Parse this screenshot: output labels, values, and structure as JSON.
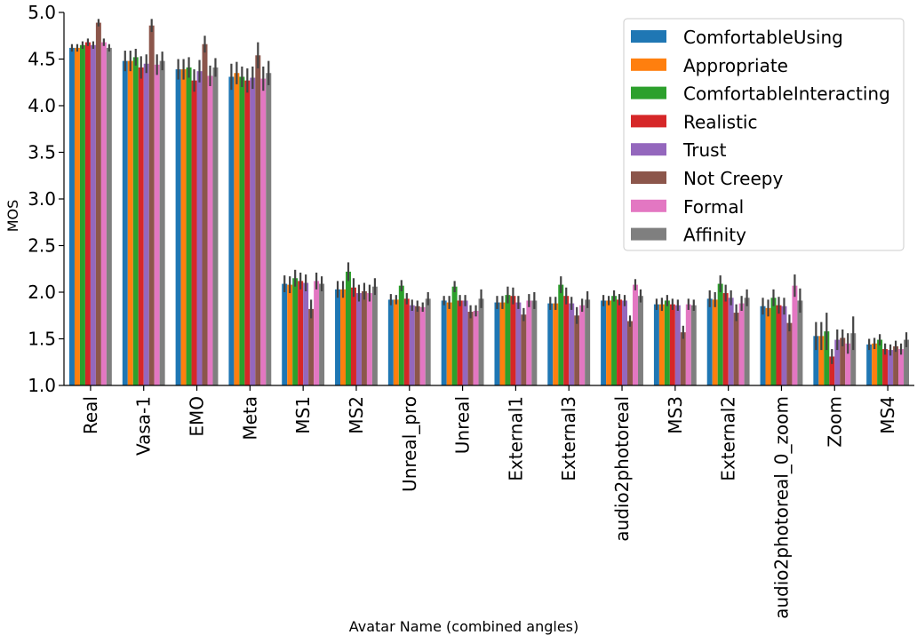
{
  "chart_data": {
    "type": "bar",
    "title": "",
    "xlabel": "Avatar Name (combined angles)",
    "ylabel": "MOS",
    "ylim": [
      1.0,
      5.0
    ],
    "yticks": [
      "1.0",
      "1.5",
      "2.0",
      "2.5",
      "3.0",
      "3.5",
      "4.0",
      "4.5",
      "5.0"
    ],
    "grid": false,
    "legend_position": "top-right",
    "categories": [
      "Real",
      "Vasa-1",
      "EMO",
      "Meta",
      "MS1",
      "MS2",
      "Unreal_pro",
      "Unreal",
      "External1",
      "External3",
      "audio2photoreal",
      "MS3",
      "External2",
      "audio2photoreal_0_zoom",
      "Zoom",
      "MS4"
    ],
    "series": [
      {
        "name": "ComfortableUsing",
        "color": "#1f77b4",
        "values": [
          4.62,
          4.48,
          4.39,
          4.31,
          2.09,
          2.03,
          1.92,
          1.91,
          1.89,
          1.88,
          1.91,
          1.87,
          1.93,
          1.85,
          1.53,
          1.44
        ],
        "errors": [
          0.04,
          0.11,
          0.11,
          0.14,
          0.09,
          0.09,
          0.06,
          0.05,
          0.07,
          0.07,
          0.06,
          0.06,
          0.09,
          0.09,
          0.15,
          0.06
        ]
      },
      {
        "name": "Appropriate",
        "color": "#ff7f0e",
        "values": [
          4.62,
          4.48,
          4.39,
          4.35,
          2.08,
          2.03,
          1.92,
          1.89,
          1.89,
          1.88,
          1.91,
          1.87,
          1.92,
          1.83,
          1.53,
          1.45
        ],
        "errors": [
          0.04,
          0.11,
          0.11,
          0.12,
          0.09,
          0.09,
          0.05,
          0.07,
          0.07,
          0.07,
          0.05,
          0.07,
          0.08,
          0.09,
          0.15,
          0.06
        ]
      },
      {
        "name": "ComfortableInteracting",
        "color": "#2ca02c",
        "values": [
          4.65,
          4.52,
          4.41,
          4.31,
          2.15,
          2.22,
          2.07,
          2.06,
          1.97,
          2.08,
          1.96,
          1.91,
          2.09,
          1.94,
          1.58,
          1.49
        ],
        "errors": [
          0.04,
          0.09,
          0.11,
          0.11,
          0.09,
          0.1,
          0.06,
          0.06,
          0.09,
          0.09,
          0.06,
          0.06,
          0.09,
          0.09,
          0.2,
          0.06
        ]
      },
      {
        "name": "Realistic",
        "color": "#d62728",
        "values": [
          4.68,
          4.41,
          4.27,
          4.27,
          2.12,
          2.05,
          1.93,
          1.91,
          1.96,
          1.96,
          1.92,
          1.87,
          1.99,
          1.86,
          1.31,
          1.39
        ],
        "errors": [
          0.04,
          0.12,
          0.12,
          0.13,
          0.09,
          0.1,
          0.06,
          0.06,
          0.09,
          0.09,
          0.06,
          0.06,
          0.09,
          0.09,
          0.08,
          0.06
        ]
      },
      {
        "name": "Trust",
        "color": "#9467bd",
        "values": [
          4.65,
          4.45,
          4.37,
          4.3,
          2.1,
          1.99,
          1.86,
          1.91,
          1.89,
          1.88,
          1.91,
          1.86,
          1.94,
          1.85,
          1.49,
          1.38
        ],
        "errors": [
          0.04,
          0.1,
          0.12,
          0.12,
          0.09,
          0.09,
          0.06,
          0.06,
          0.07,
          0.07,
          0.06,
          0.06,
          0.08,
          0.09,
          0.11,
          0.06
        ]
      },
      {
        "name": "Not Creepy",
        "color": "#8c564b",
        "values": [
          4.89,
          4.86,
          4.66,
          4.54,
          1.82,
          2.01,
          1.85,
          1.79,
          1.76,
          1.75,
          1.69,
          1.57,
          1.78,
          1.67,
          1.51,
          1.42
        ],
        "errors": [
          0.04,
          0.07,
          0.09,
          0.14,
          0.1,
          0.09,
          0.06,
          0.07,
          0.07,
          0.09,
          0.06,
          0.07,
          0.09,
          0.09,
          0.09,
          0.06
        ]
      },
      {
        "name": "Formal",
        "color": "#e377c2",
        "values": [
          4.68,
          4.44,
          4.32,
          4.29,
          2.12,
          1.99,
          1.84,
          1.8,
          1.91,
          1.86,
          2.08,
          1.87,
          1.88,
          2.07,
          1.45,
          1.39
        ],
        "errors": [
          0.04,
          0.11,
          0.11,
          0.13,
          0.09,
          0.09,
          0.05,
          0.06,
          0.07,
          0.07,
          0.06,
          0.06,
          0.08,
          0.12,
          0.11,
          0.06
        ]
      },
      {
        "name": "Affinity",
        "color": "#7f7f7f",
        "values": [
          4.62,
          4.48,
          4.41,
          4.35,
          2.09,
          2.06,
          1.93,
          1.93,
          1.91,
          1.92,
          1.96,
          1.86,
          1.94,
          1.91,
          1.56,
          1.49
        ],
        "errors": [
          0.04,
          0.1,
          0.1,
          0.13,
          0.08,
          0.09,
          0.07,
          0.1,
          0.09,
          0.09,
          0.07,
          0.06,
          0.09,
          0.13,
          0.18,
          0.08
        ]
      }
    ]
  }
}
